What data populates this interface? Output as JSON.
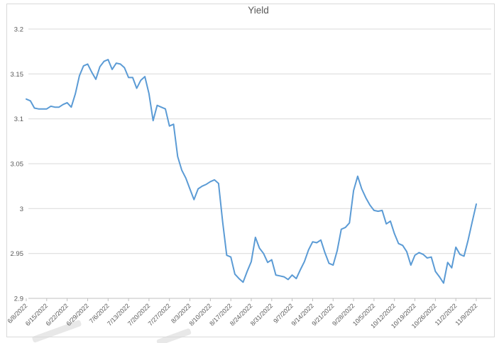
{
  "title": "Yield",
  "colors": {
    "line": "#5B9BD5",
    "grid": "#D9D9D9",
    "axis": "#BFBFBF",
    "text": "#595959",
    "border": "#D9D9D9",
    "watermark": "#DCDCDC"
  },
  "chart_data": {
    "type": "line",
    "title": "Yield",
    "xlabel": "",
    "ylabel": "",
    "legend": "none",
    "grid": true,
    "ylim": [
      2.9,
      3.2
    ],
    "y_ticks": [
      2.9,
      2.95,
      3.0,
      3.05,
      3.1,
      3.15,
      3.2
    ],
    "y_tick_labels": [
      "2.9",
      "2.95",
      "3",
      "3.05",
      "3.1",
      "3.15",
      "3.2"
    ],
    "x_tick_labels": [
      "6/8/2022",
      "6/15/2022",
      "6/22/2022",
      "6/29/2022",
      "7/6/2022",
      "7/13/2022",
      "7/20/2022",
      "7/27/2022",
      "8/3/2022",
      "8/10/2022",
      "8/17/2022",
      "8/24/2022",
      "8/31/2022",
      "9/7/2022",
      "9/14/2022",
      "9/21/2022",
      "9/28/2022",
      "10/5/2022",
      "10/12/2022",
      "10/19/2022",
      "10/26/2022",
      "11/2/2022",
      "11/9/2022"
    ],
    "x": [
      "6/8/2022",
      "6/9/2022",
      "6/10/2022",
      "6/13/2022",
      "6/14/2022",
      "6/15/2022",
      "6/16/2022",
      "6/17/2022",
      "6/20/2022",
      "6/21/2022",
      "6/22/2022",
      "6/23/2022",
      "6/24/2022",
      "6/27/2022",
      "6/28/2022",
      "6/29/2022",
      "6/30/2022",
      "7/1/2022",
      "7/4/2022",
      "7/5/2022",
      "7/6/2022",
      "7/7/2022",
      "7/8/2022",
      "7/11/2022",
      "7/12/2022",
      "7/13/2022",
      "7/14/2022",
      "7/15/2022",
      "7/18/2022",
      "7/19/2022",
      "7/20/2022",
      "7/21/2022",
      "7/22/2022",
      "7/25/2022",
      "7/26/2022",
      "7/27/2022",
      "7/28/2022",
      "7/29/2022",
      "8/1/2022",
      "8/2/2022",
      "8/3/2022",
      "8/4/2022",
      "8/5/2022",
      "8/8/2022",
      "8/9/2022",
      "8/10/2022",
      "8/11/2022",
      "8/12/2022",
      "8/15/2022",
      "8/16/2022",
      "8/17/2022",
      "8/18/2022",
      "8/19/2022",
      "8/22/2022",
      "8/23/2022",
      "8/24/2022",
      "8/25/2022",
      "8/26/2022",
      "8/29/2022",
      "8/30/2022",
      "8/31/2022",
      "9/1/2022",
      "9/2/2022",
      "9/5/2022",
      "9/6/2022",
      "9/7/2022",
      "9/8/2022",
      "9/9/2022",
      "9/12/2022",
      "9/13/2022",
      "9/14/2022",
      "9/15/2022",
      "9/16/2022",
      "9/19/2022",
      "9/20/2022",
      "9/21/2022",
      "9/22/2022",
      "9/23/2022",
      "9/26/2022",
      "9/27/2022",
      "9/28/2022",
      "9/29/2022",
      "9/30/2022",
      "10/3/2022",
      "10/4/2022",
      "10/5/2022",
      "10/6/2022",
      "10/7/2022",
      "10/10/2022",
      "10/11/2022",
      "10/12/2022",
      "10/13/2022",
      "10/14/2022",
      "10/17/2022",
      "10/18/2022",
      "10/19/2022",
      "10/20/2022",
      "10/21/2022",
      "10/24/2022",
      "10/25/2022",
      "10/26/2022",
      "10/27/2022",
      "10/28/2022",
      "10/31/2022",
      "11/1/2022",
      "11/2/2022",
      "11/3/2022",
      "11/4/2022",
      "11/7/2022",
      "11/8/2022",
      "11/9/2022"
    ],
    "values": [
      3.122,
      3.12,
      3.112,
      3.111,
      3.111,
      3.111,
      3.114,
      3.113,
      3.113,
      3.116,
      3.118,
      3.113,
      3.128,
      3.148,
      3.159,
      3.161,
      3.152,
      3.144,
      3.158,
      3.164,
      3.166,
      3.155,
      3.162,
      3.161,
      3.157,
      3.146,
      3.146,
      3.134,
      3.143,
      3.147,
      3.128,
      3.098,
      3.115,
      3.113,
      3.111,
      3.092,
      3.094,
      3.058,
      3.043,
      3.034,
      3.022,
      3.01,
      3.022,
      3.025,
      3.027,
      3.03,
      3.032,
      3.028,
      2.985,
      2.948,
      2.946,
      2.927,
      2.922,
      2.918,
      2.93,
      2.941,
      2.968,
      2.956,
      2.95,
      2.94,
      2.943,
      2.926,
      2.925,
      2.924,
      2.921,
      2.926,
      2.922,
      2.932,
      2.941,
      2.954,
      2.963,
      2.962,
      2.965,
      2.951,
      2.939,
      2.937,
      2.953,
      2.977,
      2.979,
      2.984,
      3.02,
      3.036,
      3.022,
      3.012,
      3.004,
      2.998,
      2.997,
      2.998,
      2.983,
      2.986,
      2.972,
      2.961,
      2.959,
      2.952,
      2.937,
      2.948,
      2.951,
      2.949,
      2.945,
      2.946,
      2.93,
      2.924,
      2.917,
      2.94,
      2.934,
      2.957,
      2.949,
      2.947,
      2.965,
      2.985,
      3.005
    ]
  }
}
